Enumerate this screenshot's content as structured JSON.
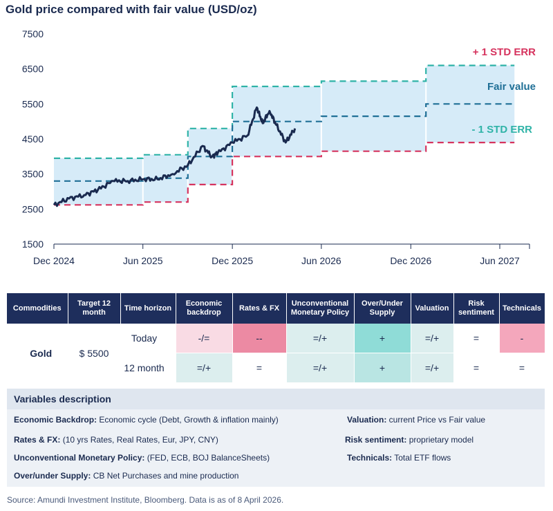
{
  "title": "Gold price compared with fair value (USD/oz)",
  "chart_data": {
    "type": "line",
    "title": "Gold price compared with fair value (USD/oz)",
    "ylim": [
      1500,
      7500
    ],
    "yticks": [
      1500,
      2500,
      3500,
      4500,
      5500,
      6500,
      7500
    ],
    "x_tick_labels": [
      "Dec 2024",
      "Jun 2025",
      "Dec 2025",
      "Jun 2026",
      "Dec 2026",
      "Jun 2027"
    ],
    "x_tick_dates": [
      "2024-12",
      "2025-06",
      "2025-12",
      "2026-06",
      "2026-12",
      "2027-06"
    ],
    "grid": false,
    "annotations": [
      {
        "text": "+ 1 STD ERR",
        "color": "#d6335e"
      },
      {
        "text": "Fair value",
        "color": "#1f6f96"
      },
      {
        "text": "- 1 STD ERR",
        "color": "#2fb3a7"
      }
    ],
    "series": [
      {
        "name": "Gold price",
        "color": "#1a2a4f",
        "x": [
          "2024-12",
          "2025-01",
          "2025-02",
          "2025-03",
          "2025-04",
          "2025-05",
          "2025-06",
          "2025-07",
          "2025-08",
          "2025-09",
          "2025-10",
          "2025-10-20",
          "2025-11",
          "2025-12",
          "2026-01",
          "2026-01-20",
          "2026-02",
          "2026-02-15",
          "2026-03",
          "2026-03-20",
          "2026-04-08"
        ],
        "values": [
          2620,
          2800,
          2900,
          3050,
          3300,
          3300,
          3350,
          3350,
          3500,
          3750,
          4300,
          4000,
          4100,
          4400,
          4600,
          5400,
          4950,
          5300,
          4900,
          4400,
          4800
        ]
      },
      {
        "name": "+ 1 STD ERR",
        "color": "#2fb3a7",
        "x": [
          "2024-12",
          "2025-06",
          "2025-09",
          "2025-12",
          "2026-06",
          "2027-01",
          "2027-07"
        ],
        "values": [
          3950,
          4050,
          4800,
          6000,
          6150,
          6600,
          6600
        ]
      },
      {
        "name": "Fair value",
        "color": "#1f6f96",
        "x": [
          "2024-12",
          "2025-06",
          "2025-09",
          "2025-12",
          "2026-06",
          "2027-01",
          "2027-07"
        ],
        "values": [
          3300,
          3380,
          4000,
          5000,
          5150,
          5500,
          5500
        ]
      },
      {
        "name": "- 1 STD ERR",
        "color": "#d6335e",
        "x": [
          "2024-12",
          "2025-06",
          "2025-09",
          "2025-12",
          "2026-06",
          "2027-01",
          "2027-07"
        ],
        "values": [
          2620,
          2700,
          3200,
          4000,
          4150,
          4400,
          4400
        ]
      }
    ]
  },
  "table": {
    "headers": [
      "Commodities",
      "Target 12 month",
      "Time horizon",
      "Economic backdrop",
      "Rates & FX",
      "Unconventional Monetary Policy",
      "Over/Under Supply",
      "Valuation",
      "Risk sentiment",
      "Technicals"
    ],
    "commodity": "Gold",
    "target": "$ 5500",
    "rows": [
      {
        "horizon": "Today",
        "cells": [
          "-/=",
          "--",
          "=/+",
          "+",
          "=/+",
          "=",
          "-"
        ]
      },
      {
        "horizon": "12 month",
        "cells": [
          "=/+",
          "=",
          "=/+",
          "+",
          "=/+",
          "=",
          "="
        ]
      }
    ]
  },
  "variables": {
    "title": "Variables description",
    "items": [
      {
        "term": "Economic Backdrop:",
        "desc": " Economic cycle (Debt, Growth & inflation mainly)"
      },
      {
        "term": "Rates & FX:",
        "desc": " (10 yrs Rates, Real Rates, Eur, JPY, CNY)"
      },
      {
        "term": "Unconventional Monetary Policy:",
        "desc": " (FED, ECB, BOJ BalanceSheets)"
      },
      {
        "term": "Over/under Supply:",
        "desc": " CB Net Purchases and mine production"
      },
      {
        "term": "Valuation:",
        "desc": " current Price vs Fair value"
      },
      {
        "term": "Risk sentiment:",
        "desc": " proprietary model"
      },
      {
        "term": "Technicals:",
        "desc": " Total ETF flows"
      }
    ]
  },
  "source": "Source: Amundi Investment Institute, Bloomberg. Data is as of 8 April 2026."
}
